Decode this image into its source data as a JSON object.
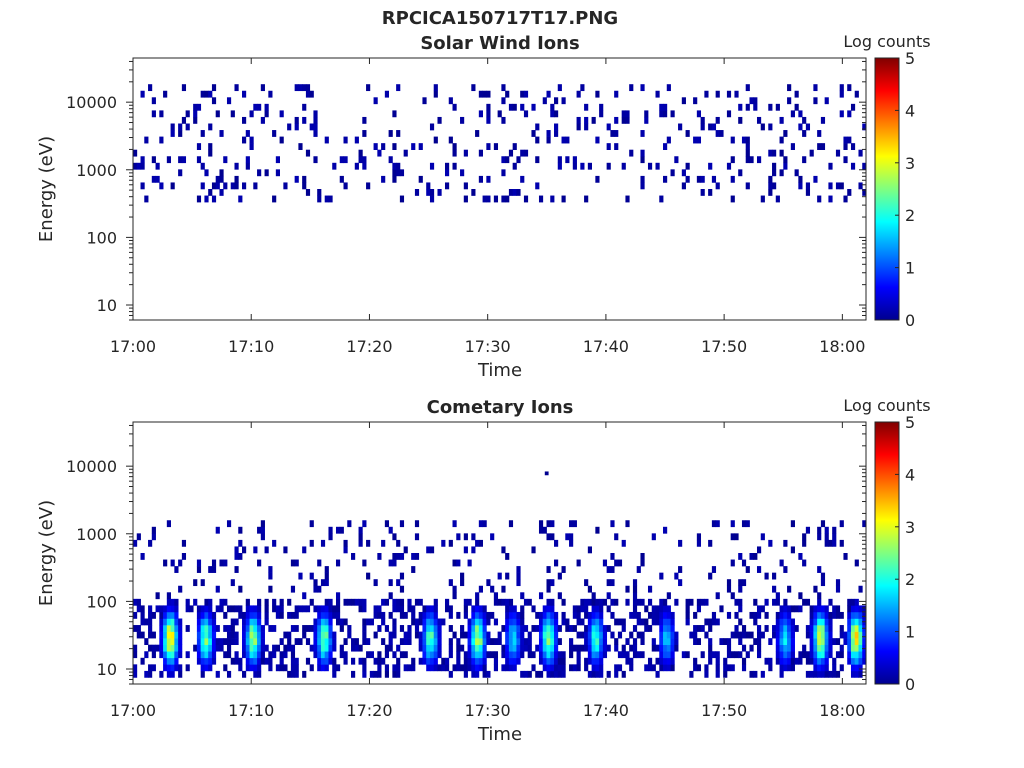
{
  "figure_title": "RPCICA150717T17.PNG",
  "colormap": {
    "name": "jet",
    "stops": [
      "#00008f",
      "#0000ff",
      "#00ffff",
      "#ffff00",
      "#ff0000",
      "#800000"
    ]
  },
  "chart_data": [
    {
      "type": "heatmap",
      "title": "Solar Wind Ions",
      "xlabel": "Time",
      "ylabel": "Energy (eV)",
      "x_range": [
        "17:00",
        "18:02"
      ],
      "x_ticks": [
        "17:00",
        "17:10",
        "17:20",
        "17:30",
        "17:40",
        "17:50",
        "18:00"
      ],
      "y_scale": "log",
      "y_range": [
        6,
        45000
      ],
      "y_ticks": [
        10,
        100,
        1000,
        10000
      ],
      "y_tick_labels": [
        "10",
        "100",
        "1000",
        "10000"
      ],
      "colorbar": {
        "label": "Log counts",
        "range": [
          0,
          5
        ],
        "ticks": [
          "0",
          "1",
          "2",
          "3",
          "4",
          "5"
        ]
      },
      "distribution": [
        {
          "energy_range_eV": [
            300,
            20000
          ],
          "time_range": [
            "17:00",
            "18:02"
          ],
          "log_counts": [
            0,
            0.2
          ],
          "coverage": "sparse"
        }
      ]
    },
    {
      "type": "heatmap",
      "title": "Cometary Ions",
      "xlabel": "Time",
      "ylabel": "Energy (eV)",
      "x_range": [
        "17:00",
        "18:02"
      ],
      "x_ticks": [
        "17:00",
        "17:10",
        "17:20",
        "17:30",
        "17:40",
        "17:50",
        "18:00"
      ],
      "y_scale": "log",
      "y_range": [
        6,
        45000
      ],
      "y_ticks": [
        10,
        100,
        1000,
        10000
      ],
      "y_tick_labels": [
        "10",
        "100",
        "1000",
        "10000"
      ],
      "colorbar": {
        "label": "Log counts",
        "range": [
          0,
          5
        ],
        "ticks": [
          "0",
          "1",
          "2",
          "3",
          "4",
          "5"
        ]
      },
      "distribution": [
        {
          "energy_range_eV": [
            100,
            1500
          ],
          "time_range": [
            "17:00",
            "18:02"
          ],
          "log_counts": [
            0,
            0.2
          ],
          "coverage": "sparse"
        },
        {
          "energy_range_eV": [
            7,
            100
          ],
          "time_range": [
            "17:00",
            "18:02"
          ],
          "log_counts": [
            0,
            3.8
          ],
          "coverage": "bursty"
        }
      ],
      "bursts": [
        {
          "time": "17:03",
          "log_counts": 3.8
        },
        {
          "time": "17:06",
          "log_counts": 2.8
        },
        {
          "time": "17:10",
          "log_counts": 3.0
        },
        {
          "time": "17:16",
          "log_counts": 2.8
        },
        {
          "time": "17:25",
          "log_counts": 2.6
        },
        {
          "time": "17:29",
          "log_counts": 3.2
        },
        {
          "time": "17:32",
          "log_counts": 2.0
        },
        {
          "time": "17:35",
          "log_counts": 3.0
        },
        {
          "time": "17:39",
          "log_counts": 2.4
        },
        {
          "time": "17:45",
          "log_counts": 1.8
        },
        {
          "time": "17:55",
          "log_counts": 2.0
        },
        {
          "time": "17:58",
          "log_counts": 3.4
        },
        {
          "time": "18:01",
          "log_counts": 3.6
        }
      ],
      "isolated_points": [
        {
          "time": "17:35",
          "energy_eV": 7800
        }
      ]
    }
  ]
}
